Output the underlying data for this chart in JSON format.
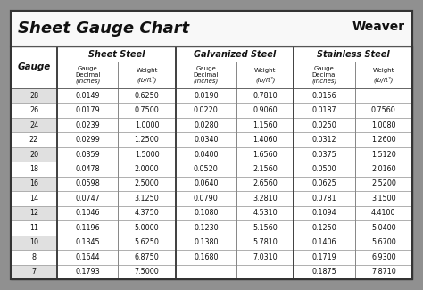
{
  "title": "Sheet Gauge Chart",
  "outer_bg": "#909090",
  "inner_bg": "#ffffff",
  "border_color": "#555555",
  "row_alt_color": "#e0e0e0",
  "row_white": "#ffffff",
  "header_bg": "#ffffff",
  "gauges": [
    28,
    26,
    24,
    22,
    20,
    18,
    16,
    14,
    12,
    11,
    10,
    8,
    7
  ],
  "sheet_steel_dec": [
    "0.0149",
    "0.0179",
    "0.0239",
    "0.0299",
    "0.0359",
    "0.0478",
    "0.0598",
    "0.0747",
    "0.1046",
    "0.1196",
    "0.1345",
    "0.1644",
    "0.1793"
  ],
  "sheet_steel_wt": [
    "0.6250",
    "0.7500",
    "1.0000",
    "1.2500",
    "1.5000",
    "2.0000",
    "2.5000",
    "3.1250",
    "4.3750",
    "5.0000",
    "5.6250",
    "6.8750",
    "7.5000"
  ],
  "galv_dec": [
    "0.0190",
    "0.0220",
    "0.0280",
    "0.0340",
    "0.0400",
    "0.0520",
    "0.0640",
    "0.0790",
    "0.1080",
    "0.1230",
    "0.1380",
    "0.1680",
    ""
  ],
  "galv_wt": [
    "0.7810",
    "0.9060",
    "1.1560",
    "1.4060",
    "1.6560",
    "2.1560",
    "2.6560",
    "3.2810",
    "4.5310",
    "5.1560",
    "5.7810",
    "7.0310",
    ""
  ],
  "sta_dec": [
    "0.0156",
    "0.0187",
    "0.0250",
    "0.0312",
    "0.0375",
    "0.0500",
    "0.0625",
    "0.0781",
    "0.1094",
    "0.1250",
    "0.1406",
    "0.1719",
    "0.1875"
  ],
  "sta_wt": [
    "",
    "0.7560",
    "1.0080",
    "1.2600",
    "1.5120",
    "2.0160",
    "2.5200",
    "3.1500",
    "4.4100",
    "5.0400",
    "5.6700",
    "6.9300",
    "7.8710"
  ],
  "title_fontsize": 13,
  "section_header_fontsize": 7,
  "subheader_fontsize": 5,
  "data_fontsize": 5.8,
  "gauge_label_fontsize": 7.5
}
